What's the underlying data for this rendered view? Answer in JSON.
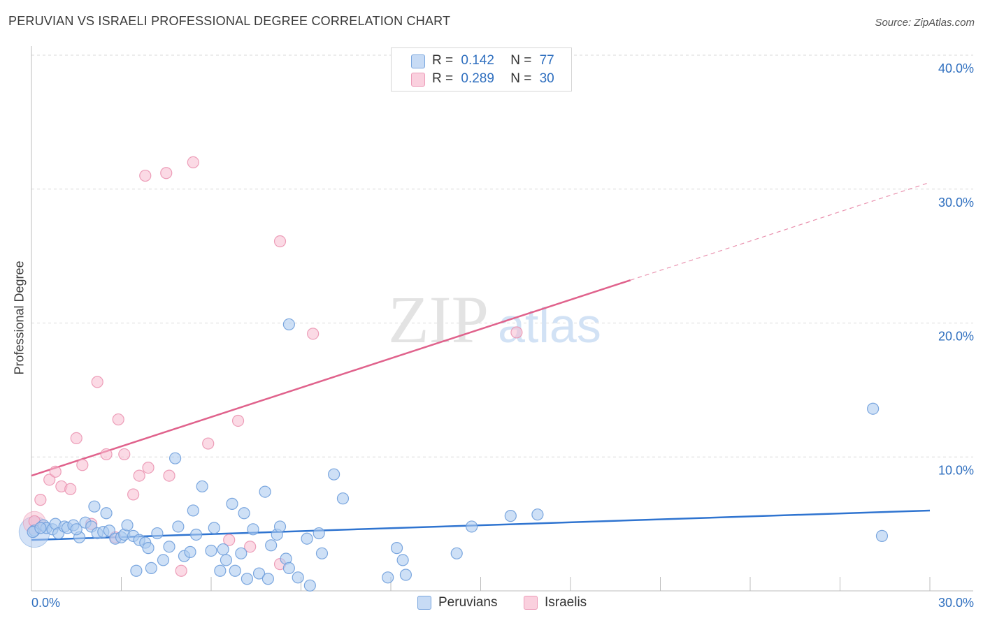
{
  "title": "PERUVIAN VS ISRAELI PROFESSIONAL DEGREE CORRELATION CHART",
  "source": "Source: ZipAtlas.com",
  "watermark": {
    "zip": "ZIP",
    "atlas": "atlas"
  },
  "legend": {
    "r_label": "R =",
    "n_label": "N =",
    "rows": [
      {
        "name": "Peruvians",
        "r": "0.142",
        "n": "77",
        "color": "#aecbf0"
      },
      {
        "name": "Israelis",
        "r": "0.289",
        "n": "30",
        "color": "#f7bcd0"
      }
    ]
  },
  "bottom_legend": {
    "peruvians": "Peruvians",
    "israelis": "Israelis"
  },
  "colors": {
    "peruvian_fill": "#aecbf0",
    "peruvian_stroke": "#6f9fdc",
    "peruvian_line": "#2f74d0",
    "israeli_fill": "#f7bcd0",
    "israeli_stroke": "#ea8fae",
    "israeli_line": "#e0628c",
    "tick_label": "#2f6fbf",
    "grid": "#d9d9d9"
  },
  "chart_data": {
    "type": "scatter",
    "title": "PERUVIAN VS ISRAELI PROFESSIONAL DEGREE CORRELATION CHART",
    "xlabel": "",
    "ylabel": "Professional Degree",
    "xlim": [
      0,
      30
    ],
    "ylim": [
      0,
      40
    ],
    "x_tick_labels": [
      "0.0%",
      "30.0%"
    ],
    "y_ticks": [
      10,
      20,
      30,
      40
    ],
    "y_tick_labels": [
      "10.0%",
      "20.0%",
      "30.0%",
      "40.0%"
    ],
    "grid": true,
    "series": [
      {
        "name": "Peruvians",
        "r": 0.142,
        "n": 77,
        "trend": {
          "x0": 0,
          "y0": 3.8,
          "x1": 30,
          "y1": 6.0
        },
        "points": [
          [
            0.1,
            4.5
          ],
          [
            0.4,
            4.9
          ],
          [
            0.5,
            4.7
          ],
          [
            0.7,
            4.6
          ],
          [
            0.8,
            5.0
          ],
          [
            0.9,
            4.3
          ],
          [
            1.1,
            4.8
          ],
          [
            1.2,
            4.7
          ],
          [
            1.4,
            4.9
          ],
          [
            1.6,
            4.0
          ],
          [
            1.8,
            5.1
          ],
          [
            2.0,
            4.8
          ],
          [
            2.1,
            6.3
          ],
          [
            2.2,
            4.3
          ],
          [
            2.4,
            4.4
          ],
          [
            2.5,
            5.8
          ],
          [
            2.6,
            4.5
          ],
          [
            2.8,
            3.9
          ],
          [
            3.0,
            4.0
          ],
          [
            3.1,
            4.2
          ],
          [
            3.2,
            4.9
          ],
          [
            3.4,
            4.1
          ],
          [
            3.5,
            1.5
          ],
          [
            3.6,
            3.8
          ],
          [
            3.8,
            3.6
          ],
          [
            3.9,
            3.2
          ],
          [
            4.0,
            1.7
          ],
          [
            4.2,
            4.3
          ],
          [
            4.4,
            2.3
          ],
          [
            4.6,
            3.3
          ],
          [
            4.8,
            9.9
          ],
          [
            4.9,
            4.8
          ],
          [
            5.1,
            2.6
          ],
          [
            5.3,
            2.9
          ],
          [
            5.4,
            6.0
          ],
          [
            5.5,
            4.2
          ],
          [
            5.7,
            7.8
          ],
          [
            6.0,
            3.0
          ],
          [
            6.1,
            4.7
          ],
          [
            6.3,
            1.5
          ],
          [
            6.4,
            3.1
          ],
          [
            6.5,
            2.3
          ],
          [
            6.7,
            6.5
          ],
          [
            6.8,
            1.5
          ],
          [
            7.0,
            2.8
          ],
          [
            7.1,
            5.8
          ],
          [
            7.2,
            0.9
          ],
          [
            7.4,
            4.6
          ],
          [
            7.6,
            1.3
          ],
          [
            7.8,
            7.4
          ],
          [
            7.9,
            0.9
          ],
          [
            8.0,
            3.4
          ],
          [
            8.2,
            4.2
          ],
          [
            8.3,
            4.8
          ],
          [
            8.5,
            2.4
          ],
          [
            8.6,
            1.7
          ],
          [
            8.6,
            19.9
          ],
          [
            8.9,
            1.0
          ],
          [
            9.2,
            3.9
          ],
          [
            9.3,
            0.4
          ],
          [
            9.6,
            4.3
          ],
          [
            9.7,
            2.8
          ],
          [
            10.1,
            8.7
          ],
          [
            10.4,
            6.9
          ],
          [
            11.9,
            1.0
          ],
          [
            12.2,
            3.2
          ],
          [
            12.4,
            2.3
          ],
          [
            12.5,
            1.2
          ],
          [
            14.2,
            2.8
          ],
          [
            14.7,
            4.8
          ],
          [
            16.0,
            5.6
          ],
          [
            16.9,
            5.7
          ],
          [
            28.1,
            13.6
          ],
          [
            28.4,
            4.1
          ],
          [
            0.05,
            4.4
          ],
          [
            0.3,
            4.7
          ],
          [
            1.5,
            4.6
          ]
        ]
      },
      {
        "name": "Israelis",
        "r": 0.289,
        "n": 30,
        "trend": {
          "x0": 0,
          "y0": 8.6,
          "x1": 20,
          "y1": 23.2,
          "dashed_to_x": 30,
          "dashed_to_y": 30.5
        },
        "points": [
          [
            0.1,
            5.2
          ],
          [
            0.3,
            6.8
          ],
          [
            0.6,
            8.3
          ],
          [
            0.8,
            8.9
          ],
          [
            1.0,
            7.8
          ],
          [
            1.3,
            7.6
          ],
          [
            1.5,
            11.4
          ],
          [
            1.7,
            9.4
          ],
          [
            2.0,
            5.0
          ],
          [
            2.2,
            15.6
          ],
          [
            2.5,
            10.2
          ],
          [
            2.8,
            4.0
          ],
          [
            2.9,
            12.8
          ],
          [
            3.1,
            10.2
          ],
          [
            3.4,
            7.2
          ],
          [
            3.6,
            8.6
          ],
          [
            3.8,
            31.0
          ],
          [
            3.9,
            9.2
          ],
          [
            4.5,
            31.2
          ],
          [
            4.6,
            8.6
          ],
          [
            5.0,
            1.5
          ],
          [
            5.4,
            32.0
          ],
          [
            5.9,
            11.0
          ],
          [
            6.6,
            3.8
          ],
          [
            6.9,
            12.7
          ],
          [
            7.3,
            3.3
          ],
          [
            8.3,
            2.0
          ],
          [
            8.3,
            26.1
          ],
          [
            9.4,
            19.2
          ],
          [
            16.2,
            19.3
          ]
        ]
      }
    ]
  }
}
